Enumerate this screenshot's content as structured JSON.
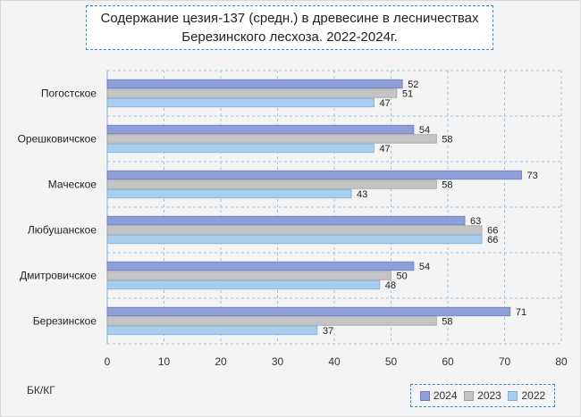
{
  "chart_data": {
    "type": "bar",
    "orientation": "horizontal",
    "title_lines": [
      "Содержание цезия-137 (средн.) в древесине в лесничествах",
      "Березинского лесхоза. 2022-2024г."
    ],
    "unit_label": "БК/КГ",
    "categories": [
      "Погостское",
      "Орешковичское",
      "Маческое",
      "Любушанское",
      "Дмитровичское",
      "Березинское"
    ],
    "series": [
      {
        "name": "2024",
        "color": "#8e9fd8",
        "values": [
          52,
          54,
          73,
          63,
          54,
          71
        ]
      },
      {
        "name": "2023",
        "color": "#c4c4c4",
        "values": [
          51,
          58,
          58,
          66,
          50,
          58
        ]
      },
      {
        "name": "2022",
        "color": "#a9cdee",
        "values": [
          47,
          47,
          43,
          66,
          48,
          37
        ]
      }
    ],
    "xlim": [
      0,
      80
    ],
    "xticks": [
      "0",
      "10",
      "20",
      "30",
      "40",
      "50",
      "60",
      "70",
      "80"
    ],
    "grid": true,
    "legend_position": "bottom-right"
  }
}
